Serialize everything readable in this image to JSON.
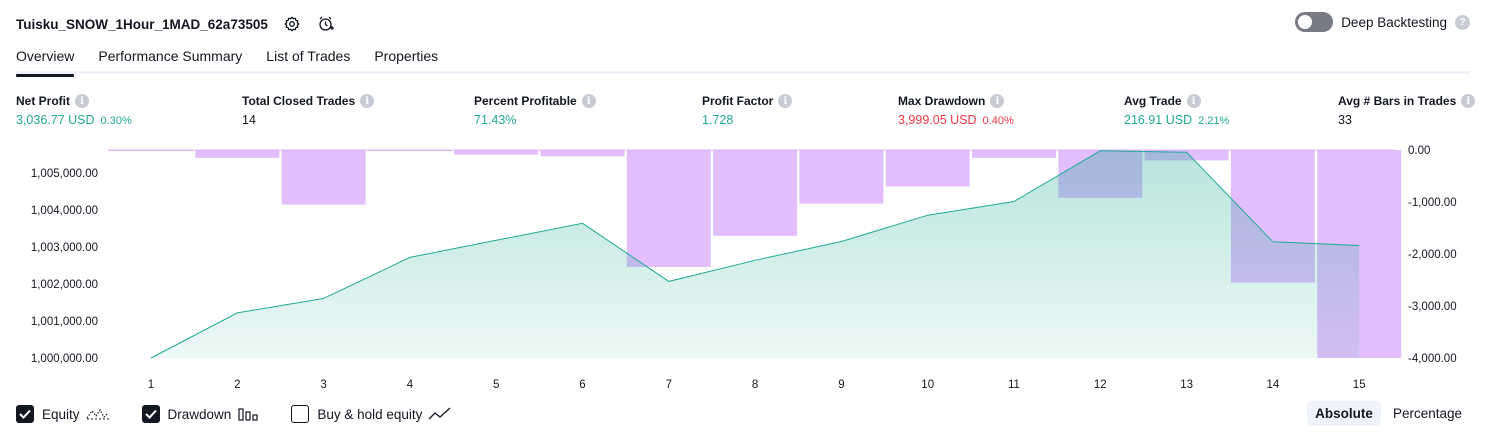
{
  "header": {
    "title": "Tuisku_SNOW_1Hour_1MAD_62a73505",
    "deep_backtesting_label": "Deep Backtesting",
    "help_glyph": "?"
  },
  "tabs": [
    {
      "label": "Overview",
      "active": true
    },
    {
      "label": "Performance Summary",
      "active": false
    },
    {
      "label": "List of Trades",
      "active": false
    },
    {
      "label": "Properties",
      "active": false
    }
  ],
  "stats": [
    {
      "label": "Net Profit",
      "value": "3,036.77 USD",
      "pct": "0.30%",
      "color": "green"
    },
    {
      "label": "Total Closed Trades",
      "value": "14",
      "pct": "",
      "color": "dark"
    },
    {
      "label": "Percent Profitable",
      "value": "71.43%",
      "pct": "",
      "color": "green"
    },
    {
      "label": "Profit Factor",
      "value": "1.728",
      "pct": "",
      "color": "green"
    },
    {
      "label": "Max Drawdown",
      "value": "3,999.05 USD",
      "pct": "0.40%",
      "color": "red"
    },
    {
      "label": "Avg Trade",
      "value": "216.91 USD",
      "pct": "2.21%",
      "color": "green"
    },
    {
      "label": "Avg # Bars in Trades",
      "value": "33",
      "pct": "",
      "color": "dark"
    }
  ],
  "info_glyph": "i",
  "chart_data": {
    "type": "line+bar",
    "x": [
      1,
      2,
      3,
      4,
      5,
      6,
      7,
      8,
      9,
      10,
      11,
      12,
      13,
      14,
      15
    ],
    "left_axis": {
      "ticks": [
        "1,000,000.00",
        "1,001,000.00",
        "1,002,000.00",
        "1,003,000.00",
        "1,004,000.00",
        "1,005,000.00"
      ],
      "tick_values": [
        1000000,
        1001000,
        1002000,
        1003000,
        1004000,
        1005000
      ]
    },
    "right_axis": {
      "ticks": [
        "0.00",
        "-1,000.00",
        "-2,000.00",
        "-3,000.00",
        "-4,000.00"
      ],
      "tick_values": [
        0,
        -1000,
        -2000,
        -3000,
        -4000
      ]
    },
    "series": [
      {
        "name": "Equity",
        "type": "area",
        "color": "#22ab94",
        "values": [
          1000000,
          1001220,
          1001610,
          1002720,
          1003180,
          1003640,
          1002070,
          1002640,
          1003150,
          1003860,
          1004230,
          1005600,
          1005560,
          1003140,
          1003040
        ]
      },
      {
        "name": "Drawdown",
        "type": "bar",
        "color": "#ce93fb",
        "values": [
          -20,
          -150,
          -1050,
          -20,
          -90,
          -120,
          -2250,
          -1650,
          -1030,
          -700,
          -150,
          -920,
          -200,
          -2550,
          -4000
        ]
      }
    ]
  },
  "legend": [
    {
      "label": "Equity",
      "checked": true
    },
    {
      "label": "Drawdown",
      "checked": true
    },
    {
      "label": "Buy & hold equity",
      "checked": false
    }
  ],
  "mode_buttons": [
    {
      "label": "Absolute",
      "active": true
    },
    {
      "label": "Percentage",
      "active": false
    }
  ]
}
